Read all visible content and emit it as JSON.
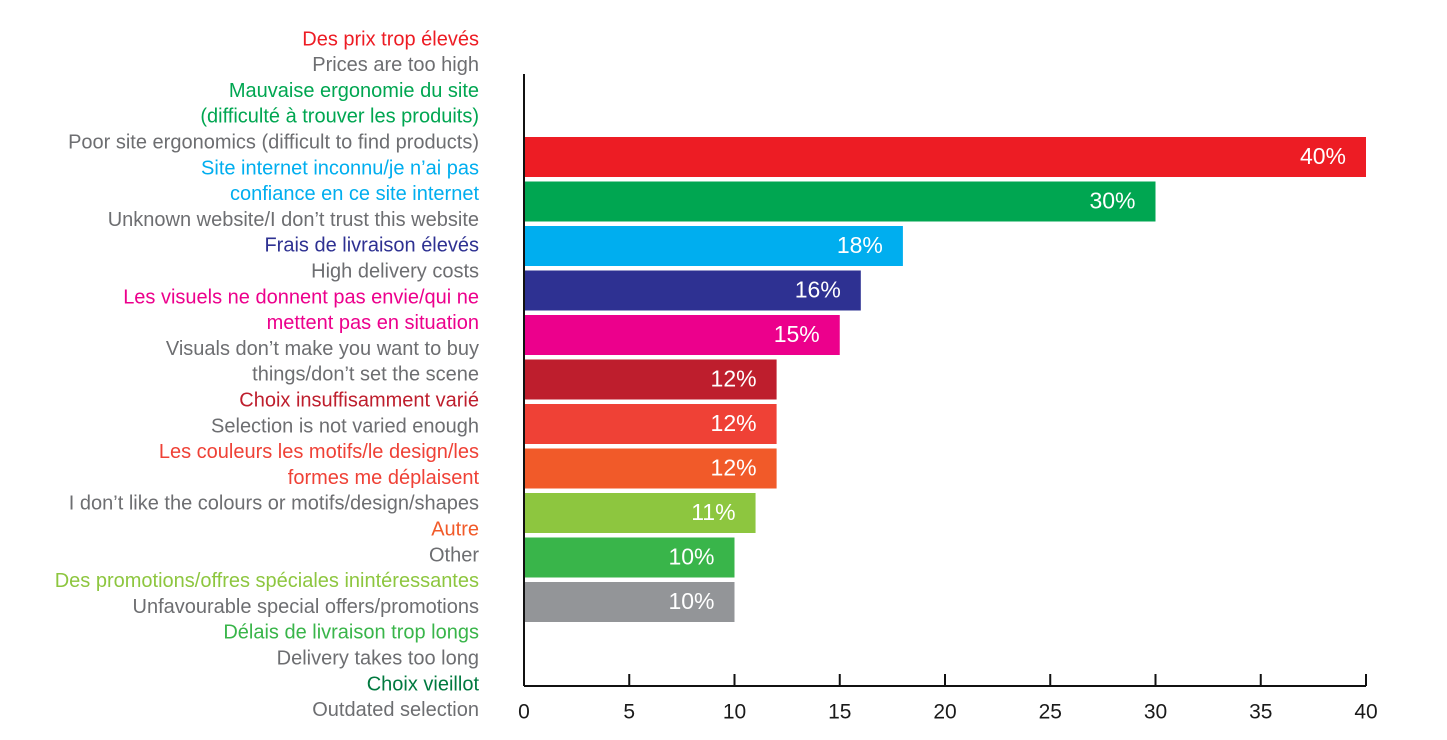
{
  "chart_data": {
    "type": "bar",
    "orientation": "horizontal",
    "xlim": [
      0,
      40
    ],
    "x_ticks": [
      "0",
      "5",
      "10",
      "15",
      "20",
      "25",
      "30",
      "35",
      "40"
    ],
    "bars": [
      {
        "value": 40,
        "label": "40%",
        "color": "#ED1C24"
      },
      {
        "value": 30,
        "label": "30%",
        "color": "#00A651"
      },
      {
        "value": 18,
        "label": "18%",
        "color": "#00AEEF"
      },
      {
        "value": 16,
        "label": "16%",
        "color": "#2E3192"
      },
      {
        "value": 15,
        "label": "15%",
        "color": "#EC008C"
      },
      {
        "value": 12,
        "label": "12%",
        "color": "#BE1E2D"
      },
      {
        "value": 12,
        "label": "12%",
        "color": "#EF4136"
      },
      {
        "value": 12,
        "label": "12%",
        "color": "#F15A29"
      },
      {
        "value": 11,
        "label": "11%",
        "color": "#8DC63F"
      },
      {
        "value": 10,
        "label": "10%",
        "color": "#39B54A"
      },
      {
        "value": 10,
        "label": "10%",
        "color": "#939598"
      }
    ],
    "category_lines": [
      {
        "text": "Des prix trop élevés",
        "color": "#ED1C24"
      },
      {
        "text": "Prices are too high",
        "color": "#6D6E71"
      },
      {
        "text": "Mauvaise ergonomie du site",
        "color": "#00A651"
      },
      {
        "text": "(difficulté à trouver les produits)",
        "color": "#00A651"
      },
      {
        "text": "Poor site ergonomics (difficult to find products)",
        "color": "#6D6E71"
      },
      {
        "text": "Site internet inconnu/je n’ai pas",
        "color": "#00AEEF"
      },
      {
        "text": "confiance en ce site internet",
        "color": "#00AEEF"
      },
      {
        "text": "Unknown website/I don’t trust this website",
        "color": "#6D6E71"
      },
      {
        "text": "Frais de livraison élevés",
        "color": "#2E3192"
      },
      {
        "text": "High delivery costs",
        "color": "#6D6E71"
      },
      {
        "text": "Les visuels ne donnent pas envie/qui ne",
        "color": "#EC008C"
      },
      {
        "text": "mettent pas en situation",
        "color": "#EC008C"
      },
      {
        "text": "Visuals don’t make you want to buy",
        "color": "#6D6E71"
      },
      {
        "text": "things/don’t set the scene",
        "color": "#6D6E71"
      },
      {
        "text": "Choix insuffisamment varié",
        "color": "#BE1E2D"
      },
      {
        "text": "Selection is not varied enough",
        "color": "#6D6E71"
      },
      {
        "text": "Les couleurs les motifs/le design/les",
        "color": "#EF4136"
      },
      {
        "text": "formes me déplaisent",
        "color": "#EF4136"
      },
      {
        "text": "I don’t like the colours or motifs/design/shapes",
        "color": "#6D6E71"
      },
      {
        "text": "Autre",
        "color": "#F15A29"
      },
      {
        "text": "Other",
        "color": "#6D6E71"
      },
      {
        "text": "Des promotions/offres spéciales inintéressantes",
        "color": "#8DC63F"
      },
      {
        "text": "Unfavourable special offers/promotions",
        "color": "#6D6E71"
      },
      {
        "text": "Délais de livraison trop longs",
        "color": "#39B54A"
      },
      {
        "text": "Delivery takes too long",
        "color": "#6D6E71"
      },
      {
        "text": "Choix vieillot",
        "color": "#00793F"
      },
      {
        "text": "Outdated selection",
        "color": "#6D6E71"
      }
    ],
    "grid": false,
    "legend": "none",
    "title": "",
    "xlabel": "",
    "ylabel": ""
  }
}
